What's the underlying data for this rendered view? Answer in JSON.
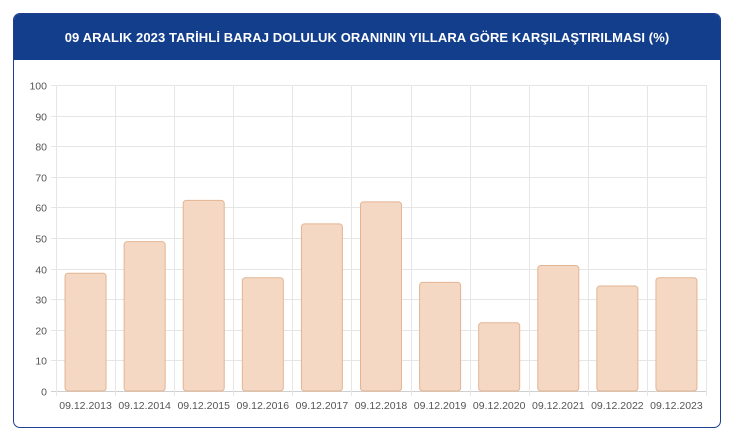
{
  "title": "09 ARALIK 2023 TARİHLİ BARAJ DOLULUK ORANININ YILLARA GÖRE KARŞILAŞTIRILMASI (%)",
  "colors": {
    "header_bg": "#123e8c",
    "header_text": "#ffffff",
    "bar_fill": "#f4d8c3",
    "bar_stroke": "#e3b592",
    "grid": "#e6e6e6"
  },
  "chart_data": {
    "type": "bar",
    "categories": [
      "09.12.2013",
      "09.12.2014",
      "09.12.2015",
      "09.12.2016",
      "09.12.2017",
      "09.12.2018",
      "09.12.2019",
      "09.12.2020",
      "09.12.2021",
      "09.12.2022",
      "09.12.2023"
    ],
    "values": [
      38.5,
      48.8,
      62.3,
      37.0,
      54.6,
      61.8,
      35.5,
      22.3,
      41.0,
      34.3,
      37.0
    ],
    "ylim": [
      0,
      100
    ],
    "yticks": [
      0,
      10,
      20,
      30,
      40,
      50,
      60,
      70,
      80,
      90,
      100
    ],
    "grid": true,
    "legend": "none"
  }
}
